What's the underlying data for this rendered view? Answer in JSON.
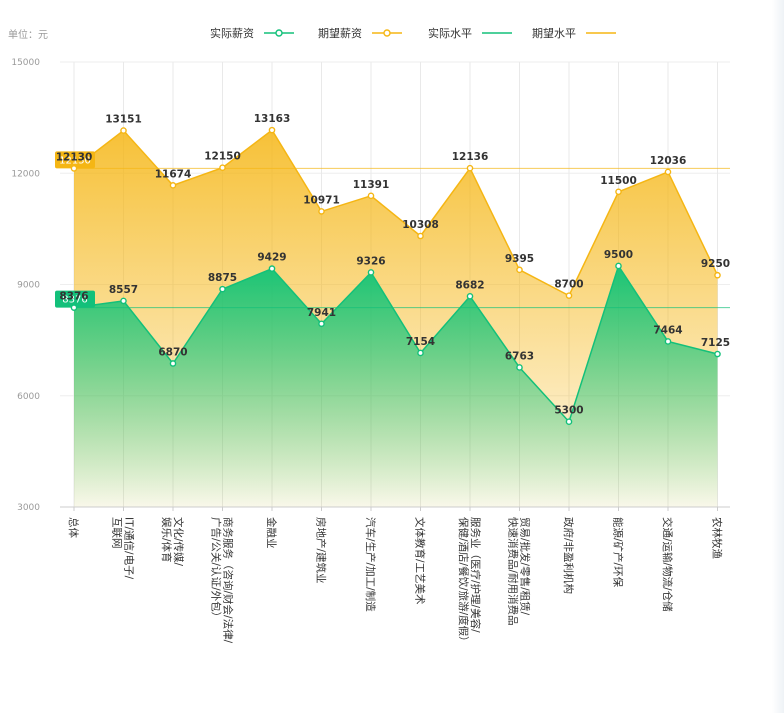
{
  "chart_data": {
    "type": "area",
    "unit_label": "单位：元",
    "categories": [
      "总体",
      "IT/通信/电子/互联网",
      "文化/传媒/娱乐/体育",
      "商务服务（咨询/财会/法律/广告/公关/认证/外包）",
      "金融业",
      "房地产/建筑业",
      "汽车/生产/加工/制造",
      "文体教育/工艺美术",
      "服务业（医疗/护理/美容/保健/酒店/餐饮/旅游/度假）",
      "贸易/批发/零售/租赁/快速消费品/耐用消费品",
      "政府/非盈利机构",
      "能源/矿产/环保",
      "交通/运输/物流/仓储",
      "农林牧渔"
    ],
    "tick_lines": [
      [
        "总体"
      ],
      [
        "IT/通信/电子/",
        "互联网"
      ],
      [
        "文化/传媒/",
        "娱乐/体育"
      ],
      [
        "商务服务（咨询/财会/法律/",
        "广告/公关/认证/外包）"
      ],
      [
        "金融业"
      ],
      [
        "房地产/建筑业"
      ],
      [
        "汽车/生产/加工/制造"
      ],
      [
        "文体教育/工艺美术"
      ],
      [
        "服务业（医疗/护理/美容/",
        "保健/酒店/餐饮/旅游/度假）"
      ],
      [
        "贸易/批发/零售/租赁/",
        "快速消费品/耐用消费品"
      ],
      [
        "政府/非盈利机构"
      ],
      [
        "能源/矿产/环保"
      ],
      [
        "交通/运输/物流/仓储"
      ],
      [
        "农林牧渔"
      ]
    ],
    "series": [
      {
        "name": "实际薪资",
        "color": "#13c07a",
        "values": [
          8376,
          8557,
          6870,
          8875,
          9429,
          7941,
          9326,
          7154,
          8682,
          6763,
          5300,
          9500,
          7464,
          7125
        ]
      },
      {
        "name": "期望薪资",
        "color": "#f5b614",
        "values": [
          12130,
          13151,
          11674,
          12150,
          13163,
          10971,
          11391,
          10308,
          12136,
          9395,
          8700,
          11500,
          12036,
          9250
        ]
      }
    ],
    "reference_lines": [
      {
        "name": "实际水平",
        "value": 8376,
        "color": "#13c07a",
        "badge": "8376"
      },
      {
        "name": "期望水平",
        "value": 12130,
        "color": "#f5b614",
        "badge": "12130"
      }
    ],
    "legend": [
      "实际薪资",
      "期望薪资",
      "实际水平",
      "期望水平"
    ],
    "legend_position": "top-center",
    "yticks": [
      3000,
      6000,
      9000,
      12000,
      15000
    ],
    "ylim": [
      3000,
      15000
    ],
    "grid": false
  }
}
